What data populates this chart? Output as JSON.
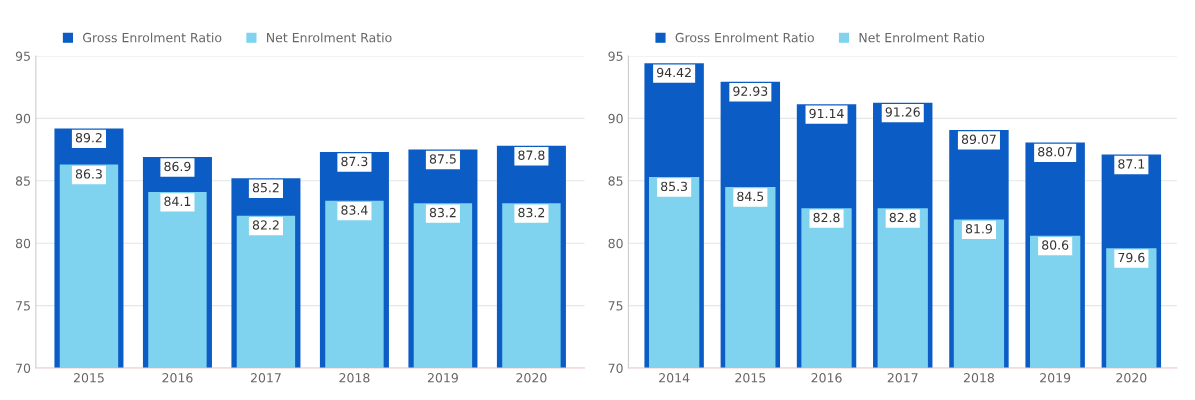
{
  "chart_data": [
    {
      "type": "bar",
      "categories": [
        "2015",
        "2016",
        "2017",
        "2018",
        "2019",
        "2020"
      ],
      "series": [
        {
          "name": "Gross Enrolment Ratio",
          "color": "#0b5cc4",
          "values": [
            89.2,
            86.9,
            85.2,
            87.3,
            87.5,
            87.8
          ]
        },
        {
          "name": "Net Enrolment Ratio",
          "color": "#7fd3ef",
          "values": [
            86.3,
            84.1,
            82.2,
            83.4,
            83.2,
            83.2
          ]
        }
      ],
      "ylim": [
        70,
        95
      ],
      "yticks": [
        70,
        75,
        80,
        85,
        90,
        95
      ],
      "grid": "y",
      "legend": "top left",
      "data_labels": true
    },
    {
      "type": "bar",
      "categories": [
        "2014",
        "2015",
        "2016",
        "2017",
        "2018",
        "2019",
        "2020"
      ],
      "series": [
        {
          "name": "Gross Enrolment Ratio",
          "color": "#0b5cc4",
          "values": [
            94.42,
            92.93,
            91.14,
            91.26,
            89.07,
            88.07,
            87.1
          ]
        },
        {
          "name": "Net Enrolment Ratio",
          "color": "#7fd3ef",
          "values": [
            85.3,
            84.5,
            82.8,
            82.8,
            81.9,
            80.6,
            79.6
          ]
        }
      ],
      "ylim": [
        70,
        95
      ],
      "yticks": [
        70,
        75,
        80,
        85,
        90,
        95
      ],
      "grid": "y",
      "legend": "top left",
      "data_labels": true
    }
  ]
}
